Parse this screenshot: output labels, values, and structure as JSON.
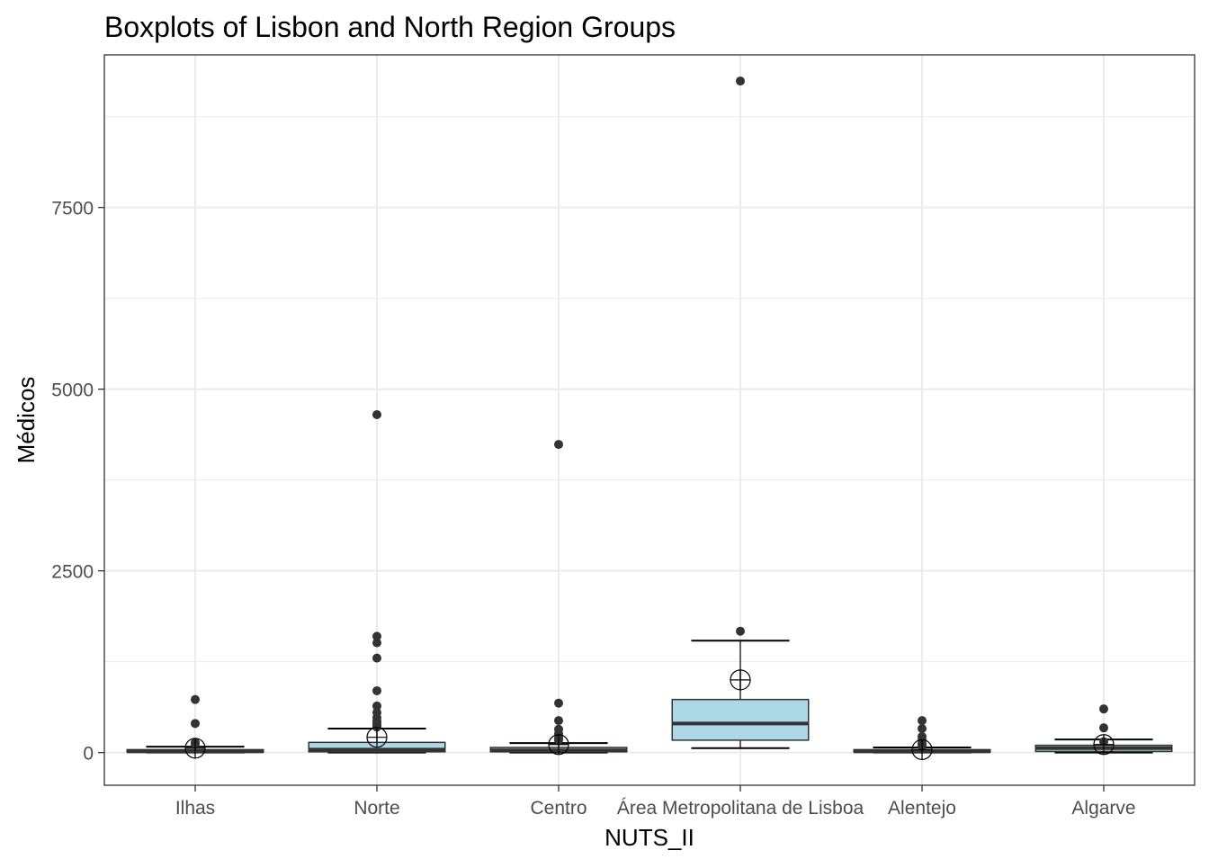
{
  "chart_data": {
    "type": "boxplot",
    "title": "Boxplots of Lisbon and North Region Groups",
    "xlabel": "NUTS_II",
    "ylabel": "Médicos",
    "ylim": [
      -450,
      9600
    ],
    "yticks": [
      0,
      2500,
      5000,
      7500
    ],
    "grid": true,
    "categories": [
      "Ilhas",
      "Norte",
      "Centro",
      "Área Metropolitana de Lisboa",
      "Alentejo",
      "Algarve"
    ],
    "boxes": [
      {
        "category": "Ilhas",
        "q1": 5,
        "median": 15,
        "q3": 40,
        "whisker_low": 0,
        "whisker_high": 80,
        "mean": 60,
        "outliers": [
          730,
          400,
          140,
          120
        ]
      },
      {
        "category": "Norte",
        "q1": 10,
        "median": 40,
        "q3": 140,
        "whisker_low": 0,
        "whisker_high": 330,
        "mean": 210,
        "outliers": [
          4650,
          1600,
          1510,
          1300,
          850,
          640,
          550,
          480,
          430,
          400,
          370,
          350
        ]
      },
      {
        "category": "Centro",
        "q1": 10,
        "median": 30,
        "q3": 70,
        "whisker_low": 0,
        "whisker_high": 130,
        "mean": 110,
        "outliers": [
          4240,
          680,
          440,
          320,
          260,
          200,
          170
        ]
      },
      {
        "category": "Área Metropolitana de Lisboa",
        "q1": 170,
        "median": 400,
        "q3": 730,
        "whisker_low": 60,
        "whisker_high": 1540,
        "mean": 1000,
        "outliers": [
          9240,
          1670
        ]
      },
      {
        "category": "Alentejo",
        "q1": 5,
        "median": 15,
        "q3": 40,
        "whisker_low": 0,
        "whisker_high": 70,
        "mean": 40,
        "outliers": [
          440,
          330,
          220,
          170,
          120,
          90
        ]
      },
      {
        "category": "Algarve",
        "q1": 15,
        "median": 60,
        "q3": 100,
        "whisker_low": 0,
        "whisker_high": 180,
        "mean": 110,
        "outliers": [
          600,
          340,
          150
        ]
      }
    ],
    "colors": {
      "box_fill": "#add8e6",
      "box_line": "#333333",
      "point": "#333333",
      "grid": "#ebebeb",
      "panel_border": "#333333"
    }
  }
}
